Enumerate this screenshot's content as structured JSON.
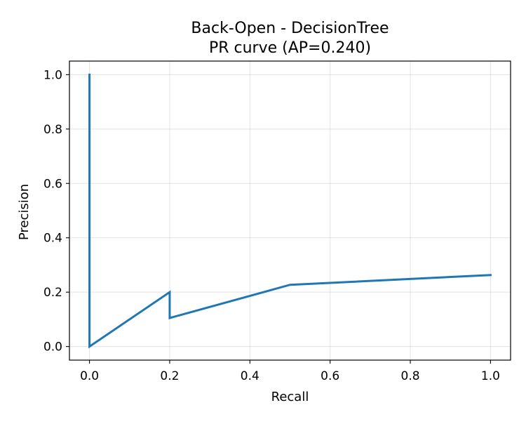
{
  "chart_data": {
    "type": "line",
    "title": "Back-Open - DecisionTree",
    "subtitle": "PR curve (AP=0.240)",
    "xlabel": "Recall",
    "ylabel": "Precision",
    "xlim": [
      -0.05,
      1.05
    ],
    "ylim": [
      -0.05,
      1.05
    ],
    "x_ticks": [
      0.0,
      0.2,
      0.4,
      0.6,
      0.8,
      1.0
    ],
    "y_ticks": [
      0.0,
      0.2,
      0.4,
      0.6,
      0.8,
      1.0
    ],
    "x_tick_labels": [
      "0.0",
      "0.2",
      "0.4",
      "0.6",
      "0.8",
      "1.0"
    ],
    "y_tick_labels": [
      "0.0",
      "0.2",
      "0.4",
      "0.6",
      "0.8",
      "1.0"
    ],
    "grid": true,
    "series": [
      {
        "color": "#1f77b4",
        "x": [
          0.0,
          0.0,
          0.2,
          0.2,
          0.5,
          1.0
        ],
        "y": [
          1.0,
          0.0,
          0.2,
          0.105,
          0.227,
          0.263
        ]
      }
    ]
  }
}
